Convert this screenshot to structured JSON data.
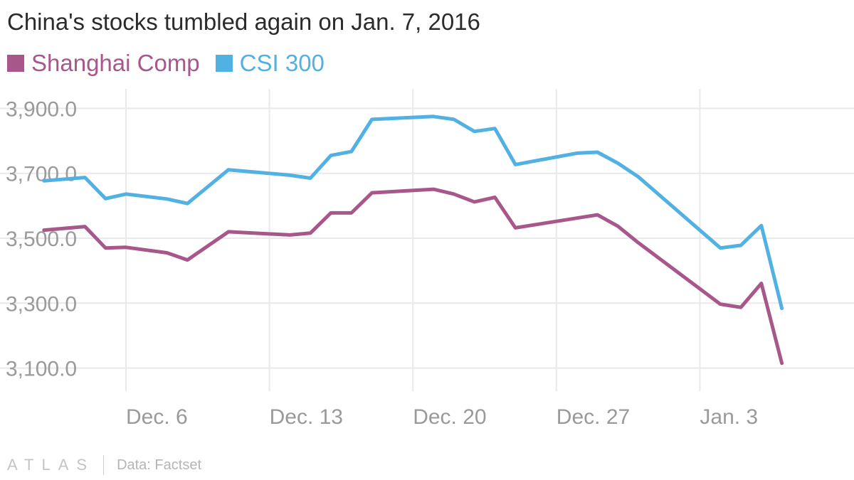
{
  "brand": {
    "logo_text": "ATLAS"
  },
  "footer": {
    "source": "Data: Factset"
  },
  "colors": {
    "shanghai": "#a8578a",
    "csi300": "#52b1e3",
    "grid": "#e9e9e9",
    "tick": "#9a9a9a"
  },
  "chart_data": {
    "type": "line",
    "title": "China's stocks tumbled again on Jan. 7, 2016",
    "xlabel": "",
    "ylabel": "",
    "ylim": [
      3040,
      3960
    ],
    "yticks": [
      3100,
      3300,
      3500,
      3700,
      3900
    ],
    "ytick_labels": [
      "3,100.0",
      "3,300.0",
      "3,500.0",
      "3,700.0",
      "3,900.0"
    ],
    "xlim": [
      "2015-12-01",
      "2016-01-09"
    ],
    "xticks": [
      "2015-12-06",
      "2015-12-13",
      "2015-12-20",
      "2015-12-27",
      "2016-01-03"
    ],
    "xtick_labels": [
      "Dec. 6",
      "Dec. 13",
      "Dec. 20",
      "Dec. 27",
      "Jan. 3"
    ],
    "grid": true,
    "legend": "top-left",
    "x": [
      "2015-12-02",
      "2015-12-04",
      "2015-12-05",
      "2015-12-06",
      "2015-12-08",
      "2015-12-09",
      "2015-12-11",
      "2015-12-14",
      "2015-12-15",
      "2015-12-16",
      "2015-12-17",
      "2015-12-18",
      "2015-12-21",
      "2015-12-22",
      "2015-12-23",
      "2015-12-24",
      "2015-12-25",
      "2015-12-28",
      "2015-12-29",
      "2015-12-30",
      "2015-12-31",
      "2016-01-04",
      "2016-01-05",
      "2016-01-06",
      "2016-01-07"
    ],
    "series": [
      {
        "name": "Shanghai Comp",
        "values": [
          3525,
          3536,
          3470,
          3472,
          3455,
          3433,
          3520,
          3510,
          3516,
          3578,
          3578,
          3640,
          3651,
          3636,
          3612,
          3626,
          3532,
          3562,
          3572,
          3537,
          3486,
          3297,
          3287,
          3361,
          3115
        ]
      },
      {
        "name": "CSI 300",
        "values": [
          3677,
          3687,
          3622,
          3636,
          3621,
          3607,
          3711,
          3694,
          3685,
          3755,
          3767,
          3866,
          3875,
          3866,
          3829,
          3838,
          3727,
          3762,
          3765,
          3731,
          3689,
          3470,
          3478,
          3539,
          3284
        ]
      }
    ]
  }
}
